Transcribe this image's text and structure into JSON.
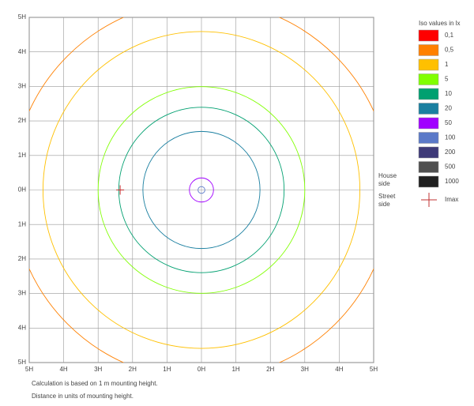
{
  "chart_data": {
    "type": "isolux",
    "xlim": [
      -5,
      5
    ],
    "ylim": [
      -5,
      5
    ],
    "xticks": [
      {
        "value": -5,
        "label": "5H"
      },
      {
        "value": -4,
        "label": "4H"
      },
      {
        "value": -3,
        "label": "3H"
      },
      {
        "value": -2,
        "label": "2H"
      },
      {
        "value": -1,
        "label": "1H"
      },
      {
        "value": 0,
        "label": "0H"
      },
      {
        "value": 1,
        "label": "1H"
      },
      {
        "value": 2,
        "label": "2H"
      },
      {
        "value": 3,
        "label": "3H"
      },
      {
        "value": 4,
        "label": "4H"
      },
      {
        "value": 5,
        "label": "5H"
      }
    ],
    "yticks": [
      {
        "value": -5,
        "label": "5H"
      },
      {
        "value": -4,
        "label": "4H"
      },
      {
        "value": -3,
        "label": "3H"
      },
      {
        "value": -2,
        "label": "2H"
      },
      {
        "value": -1,
        "label": "1H"
      },
      {
        "value": 0,
        "label": "0H"
      },
      {
        "value": 1,
        "label": "1H"
      },
      {
        "value": 2,
        "label": "2H"
      },
      {
        "value": 3,
        "label": "3H"
      },
      {
        "value": 4,
        "label": "4H"
      },
      {
        "value": 5,
        "label": "5H"
      }
    ],
    "grid": true,
    "legend_title": "Iso values in lx",
    "legend": [
      {
        "value": 0.1,
        "label": "0,1",
        "color": "#ff0000"
      },
      {
        "value": 0.5,
        "label": "0,5",
        "color": "#ff8000"
      },
      {
        "value": 1,
        "color": "#ffc000"
      },
      {
        "value": 5,
        "color": "#80ff00"
      },
      {
        "value": 10,
        "color": "#00a070"
      },
      {
        "value": 20,
        "color": "#1a7fa0"
      },
      {
        "value": 50,
        "color": "#a000ff"
      },
      {
        "value": 100,
        "color": "#5b79c8"
      },
      {
        "value": 200,
        "color": "#3e3a78"
      },
      {
        "value": 500,
        "color": "#505050"
      },
      {
        "value": 1000,
        "color": "#202020"
      }
    ],
    "contours": [
      {
        "level": 0.5,
        "radius": 5.5
      },
      {
        "level": 1,
        "radius": 4.6
      },
      {
        "level": 5,
        "radius": 3.0
      },
      {
        "level": 10,
        "radius": 2.4
      },
      {
        "level": 20,
        "radius": 1.7
      },
      {
        "level": 50,
        "radius": 0.35
      },
      {
        "level": 100,
        "radius": 0.1
      }
    ],
    "imax": {
      "label": "Imax",
      "x": -2.36,
      "y": 0,
      "color": "#c03030"
    },
    "side_labels": [
      "House side",
      "Street side"
    ],
    "notes": [
      "Calculation is based on 1 m mounting height.",
      "Distance in units of mounting height."
    ]
  }
}
